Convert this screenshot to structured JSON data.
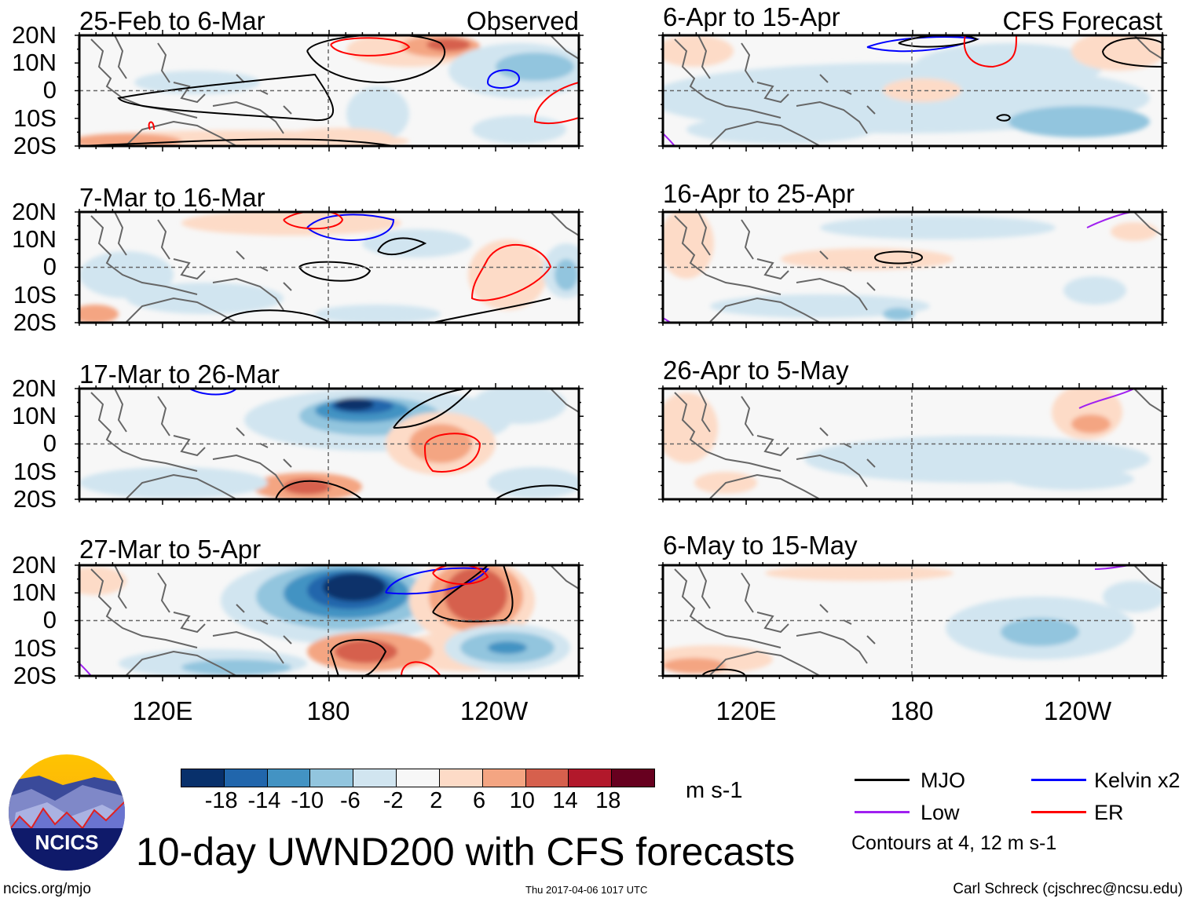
{
  "panels": {
    "left": [
      {
        "title": "25-Feb to 6-Mar",
        "tag": "Observed"
      },
      {
        "title": "7-Mar to 16-Mar"
      },
      {
        "title": "17-Mar to 26-Mar"
      },
      {
        "title": "27-Mar to 5-Apr"
      }
    ],
    "right": [
      {
        "title": "6-Apr to 15-Apr",
        "tag": "CFS Forecast"
      },
      {
        "title": "16-Apr to 25-Apr"
      },
      {
        "title": "26-Apr to 5-May"
      },
      {
        "title": "6-May to 15-May"
      }
    ]
  },
  "axes": {
    "lat_labels": [
      "20N",
      "10N",
      "0",
      "10S",
      "20S"
    ],
    "lon_labels": [
      "120E",
      "180",
      "120W"
    ]
  },
  "colorbar": {
    "colors": [
      "#08306b",
      "#2166ac",
      "#4393c3",
      "#92c5de",
      "#d1e5f0",
      "#f7f7f7",
      "#fddbc7",
      "#f4a582",
      "#d6604d",
      "#b2182b",
      "#67001f"
    ],
    "labels": [
      "-18",
      "-14",
      "-10",
      "-6",
      "-2",
      "2",
      "6",
      "10",
      "14",
      "18"
    ],
    "units": "m s-1"
  },
  "legend": {
    "items": [
      {
        "label": "MJO",
        "color": "#000000"
      },
      {
        "label": "Kelvin x2",
        "color": "#0000ff"
      },
      {
        "label": "Low",
        "color": "#a020f0"
      },
      {
        "label": "ER",
        "color": "#ff0000"
      }
    ],
    "note": "Contours at 4, 12 m s-1"
  },
  "title": "10-day UWND200 with CFS forecasts",
  "logo": {
    "text": "NCICS"
  },
  "footer": {
    "url": "ncics.org/mjo",
    "timestamp": "Thu 2017-04-06 1017 UTC",
    "author": "Carl Schreck (cjschrec@ncsu.edu)"
  }
}
